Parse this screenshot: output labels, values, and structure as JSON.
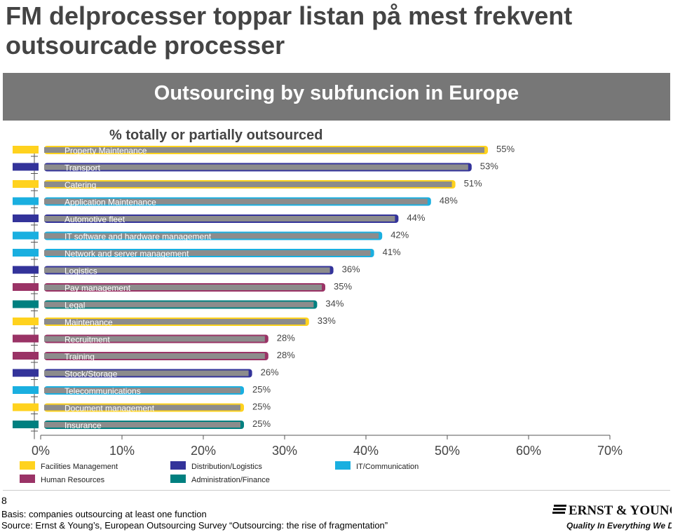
{
  "slide": {
    "title": "FM delprocesser toppar listan på mest frekvent outsourcade processer",
    "page_number": "8",
    "basis": "Basis: companies outsourcing at least one function",
    "source": "Source: Ernst & Young’s, European Outsourcing Survey “Outsourcing: the rise of fragmentation”"
  },
  "logo": {
    "wordmark": "ERNST & YOUNG",
    "tagline": "Quality In Everything We Do"
  },
  "chart_data": {
    "type": "bar",
    "orientation": "horizontal",
    "title": "Outsourcing by subfuncion in Europe",
    "subtitle": "% totally or partially outsourced",
    "categories": [
      "Property Maintenance",
      "Transport",
      "Catering",
      "Application Maintenance",
      "Automotive fleet",
      "IT software and hardware management",
      "Network and server management",
      "Logistics",
      "Pay management",
      "Legal",
      "Maintenance",
      "Recruitment",
      "Training",
      "Stock/Storage",
      "Telecommunications",
      "Document management",
      "Insurance"
    ],
    "values": [
      55,
      53,
      51,
      48,
      44,
      42,
      41,
      36,
      35,
      34,
      33,
      28,
      28,
      26,
      25,
      25,
      25
    ],
    "value_labels": [
      "55%",
      "53%",
      "51%",
      "48%",
      "44%",
      "42%",
      "41%",
      "36%",
      "35%",
      "34%",
      "33%",
      "28%",
      "28%",
      "26%",
      "25%",
      "25%",
      "25%"
    ],
    "groups": [
      "Facilities Management",
      "Distribution/Logistics",
      "Facilities Management",
      "IT/Communication",
      "Distribution/Logistics",
      "IT/Communication",
      "IT/Communication",
      "Distribution/Logistics",
      "Human Resources",
      "Administration/Finance",
      "Facilities Management",
      "Human Resources",
      "Human Resources",
      "Distribution/Logistics",
      "IT/Communication",
      "Facilities Management",
      "Administration/Finance"
    ],
    "legend": [
      {
        "name": "Facilities Management",
        "color": "#FFD21E"
      },
      {
        "name": "Distribution/Logistics",
        "color": "#33339A"
      },
      {
        "name": "IT/Communication",
        "color": "#1AAFE0"
      },
      {
        "name": "Human Resources",
        "color": "#9A3366"
      },
      {
        "name": "Administration/Finance",
        "color": "#008080"
      }
    ],
    "bar_fill_color": "#8C8C8C",
    "xlim": [
      0,
      70
    ],
    "xticks": [
      0,
      10,
      20,
      30,
      40,
      50,
      60,
      70
    ],
    "xtick_labels": [
      "0%",
      "10%",
      "20%",
      "30%",
      "40%",
      "50%",
      "60%",
      "70%"
    ],
    "legend_position": "bottom-left",
    "grid": false
  }
}
